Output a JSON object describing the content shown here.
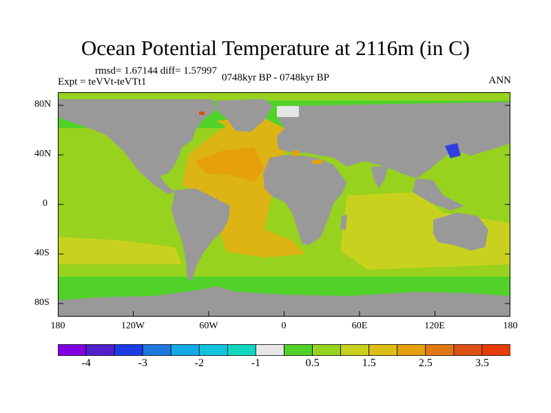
{
  "header": {
    "title": "Ocean Potential Temperature at 2116m (in C)",
    "stats": "rmsd= 1.67144 diff= 1.57997",
    "experiment": "Expt = teVVt-teVTt1",
    "period": "0748kyr BP - 0748kyr BP",
    "season": "ANN"
  },
  "axes": {
    "lat_labels": [
      "80N",
      "40N",
      "0",
      "40S",
      "80S"
    ],
    "lon_labels": [
      "180",
      "120W",
      "60W",
      "0",
      "60E",
      "120E",
      "180"
    ]
  },
  "colorbar": {
    "colors": [
      "#8000e0",
      "#5020c8",
      "#1e3ce6",
      "#1e78dc",
      "#14a8e6",
      "#10c4de",
      "#10d8c0",
      "#e6e6e6",
      "#50d228",
      "#96d21e",
      "#c8d21e",
      "#dcbe14",
      "#e6a00a",
      "#e17814",
      "#dc5014",
      "#e63c0a"
    ],
    "labels": [
      "-4",
      "-3",
      "-2",
      "-1",
      "0.5",
      "1.5",
      "2.5",
      "3.5"
    ]
  },
  "map_colors": {
    "land": "#999999",
    "polar": "#50d228",
    "ocean_cool": "#96d21e",
    "ocean_mild": "#c8d21e",
    "atlantic": "#dcb414",
    "atlantic_warm": "#e6a00a",
    "hot_spot": "#dc5014",
    "cold_spot": "#3040e0"
  }
}
